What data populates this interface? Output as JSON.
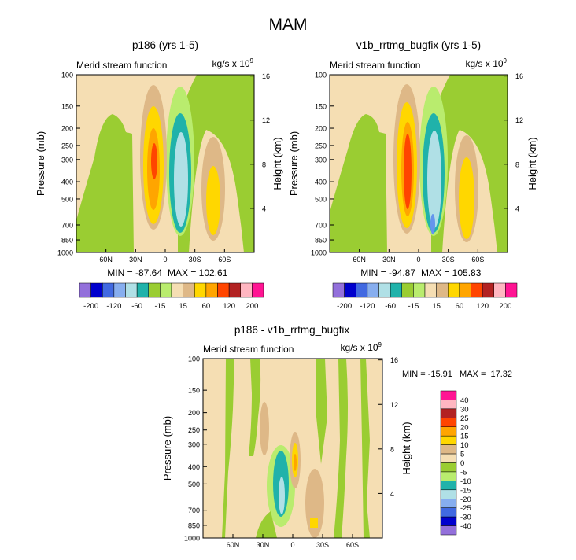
{
  "chart_data": {
    "type": "heatmap",
    "title": "MAM",
    "pressure_ticks": [
      "100",
      "150",
      "200",
      "250",
      "300",
      "400",
      "500",
      "700",
      "850",
      "1000"
    ],
    "height_ticks": [
      "16",
      "12",
      "8",
      "4"
    ],
    "lat_ticks": [
      "60N",
      "30N",
      "0",
      "30S",
      "60S"
    ],
    "panels": [
      {
        "id": "p1",
        "title": "p186 (yrs 1-5)",
        "left_label": "Merid stream function",
        "right_label": "kg/s x 10",
        "right_label_exp": "9",
        "ylabel": "Pressure (mb)",
        "ylabel_right": "Height (km)",
        "min_label": "MIN = -87.64",
        "max_label": "MAX = 102.61"
      },
      {
        "id": "p2",
        "title": "v1b_rrtmg_bugfix (yrs 1-5)",
        "left_label": "Merid stream function",
        "right_label": "kg/s x 10",
        "right_label_exp": "9",
        "ylabel": "Pressure (mb)",
        "ylabel_right": "Height (km)",
        "min_label": "MIN = -94.87",
        "max_label": "MAX = 105.83"
      },
      {
        "id": "p3",
        "title": "p186 - v1b_rrtmg_bugfix",
        "left_label": "Merid stream function",
        "right_label": "kg/s x 10",
        "right_label_exp": "9",
        "ylabel": "Pressure (mb)",
        "ylabel_right": "Height (km)",
        "minmax_label": "MIN = -15.91   MAX =  17.32"
      }
    ],
    "colorbar_main": {
      "colors": [
        "#9370db",
        "#0000cd",
        "#4169e1",
        "#87aeef",
        "#b0e0e6",
        "#20b2aa",
        "#9acd32",
        "#b9ec6e",
        "#f5deb3",
        "#deb887",
        "#ffd700",
        "#ffa500",
        "#ff4500",
        "#b22222",
        "#ffb6c1",
        "#ff1493"
      ],
      "labels": [
        "-200",
        "-120",
        "-60",
        "-15",
        "15",
        "60",
        "120",
        "200"
      ]
    },
    "colorbar_diff": {
      "colors": [
        "#ff1493",
        "#ffb6c1",
        "#b22222",
        "#ff4500",
        "#ffa500",
        "#ffd700",
        "#deb887",
        "#f5deb3",
        "#9acd32",
        "#b9ec6e",
        "#20b2aa",
        "#b0e0e6",
        "#87aeef",
        "#4169e1",
        "#0000cd",
        "#9370db"
      ],
      "labels": [
        "40",
        "30",
        "25",
        "20",
        "15",
        "10",
        "5",
        "0",
        "-5",
        "-10",
        "-15",
        "-20",
        "-25",
        "-30",
        "-40"
      ]
    }
  }
}
